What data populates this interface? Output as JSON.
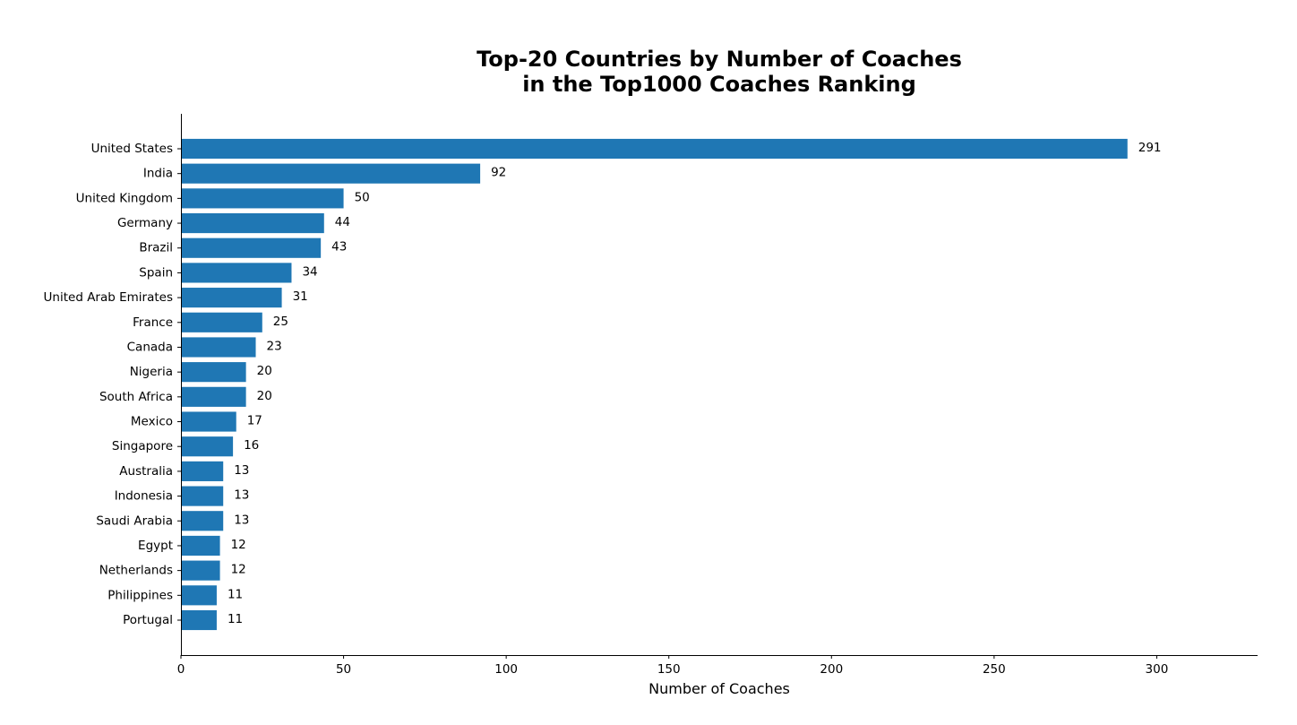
{
  "chart_data": {
    "type": "bar",
    "orientation": "horizontal",
    "title_lines": [
      "Top-20 Countries by Number of Coaches",
      "in the Top1000 Coaches Ranking"
    ],
    "xlabel": "Number of Coaches",
    "ylabel": "",
    "xlim": [
      0,
      331
    ],
    "xticks": [
      0,
      50,
      100,
      150,
      200,
      250,
      300
    ],
    "categories": [
      "United States",
      "India",
      "United Kingdom",
      "Germany",
      "Brazil",
      "Spain",
      "United Arab Emirates",
      "France",
      "Canada",
      "Nigeria",
      "South Africa",
      "Mexico",
      "Singapore",
      "Australia",
      "Indonesia",
      "Saudi Arabia",
      "Egypt",
      "Netherlands",
      "Philippines",
      "Portugal"
    ],
    "values": [
      291,
      92,
      50,
      44,
      43,
      34,
      31,
      25,
      23,
      20,
      20,
      17,
      16,
      13,
      13,
      13,
      12,
      12,
      11,
      11
    ],
    "bar_color": "#1f77b4",
    "grid": false,
    "legend": "none",
    "data_labels": true,
    "spines": [
      "left",
      "bottom"
    ]
  }
}
